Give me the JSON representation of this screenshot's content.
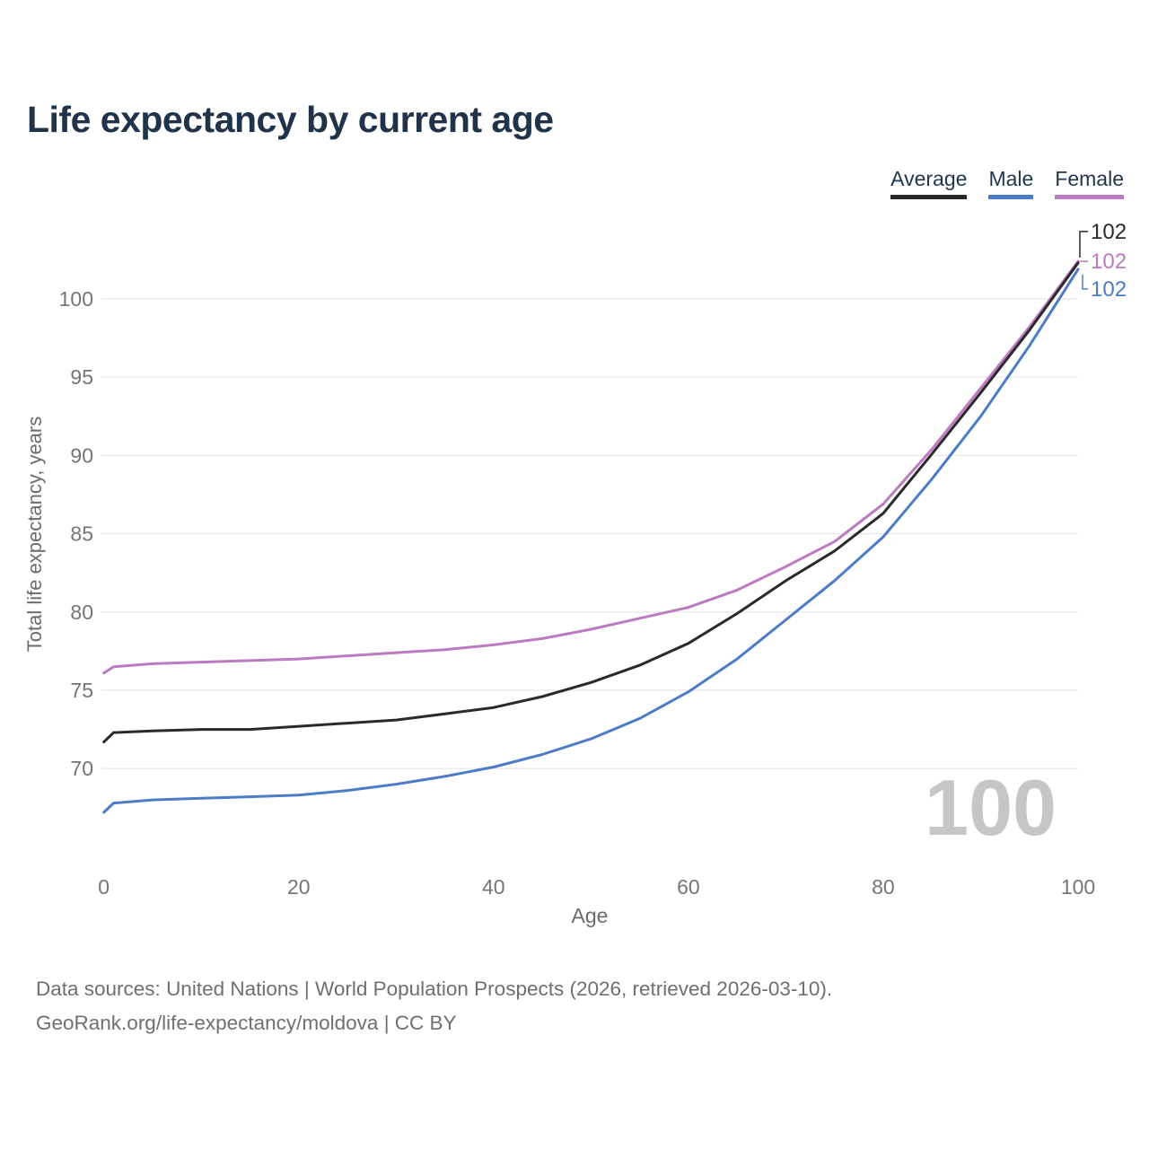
{
  "title": "Life expectancy by current age",
  "legend": {
    "items": [
      {
        "label": "Average",
        "color": "#2a2a2a"
      },
      {
        "label": "Male",
        "color": "#4d7cc6"
      },
      {
        "label": "Female",
        "color": "#bb7ac1"
      }
    ]
  },
  "colors": {
    "title_text": "#203349",
    "tick_text": "#757575",
    "axis_title_text": "#6b6b6b",
    "gridline": "#e8e8e8",
    "watermark": "#c6c6c6",
    "footer_text": "#6f6f6f"
  },
  "chart_data": {
    "type": "line",
    "title": "Life expectancy by current age",
    "xlabel": "Age",
    "ylabel": "Total life expectancy, years",
    "x_ticks": [
      0,
      20,
      40,
      60,
      80,
      100
    ],
    "y_ticks": [
      70,
      75,
      80,
      85,
      90,
      95,
      100
    ],
    "xlim": [
      0,
      100
    ],
    "ylim": [
      67,
      102.5
    ],
    "grid": "horizontal-only",
    "legend_position": "top-right",
    "watermark": "100",
    "ages": [
      0,
      1,
      5,
      10,
      15,
      20,
      25,
      30,
      35,
      40,
      45,
      50,
      55,
      60,
      65,
      70,
      75,
      80,
      85,
      90,
      95,
      100
    ],
    "series": [
      {
        "name": "Average",
        "color": "#2a2a2a",
        "end_label": "102",
        "values": [
          71.7,
          72.3,
          72.4,
          72.5,
          72.5,
          72.7,
          72.9,
          73.1,
          73.5,
          73.9,
          74.6,
          75.5,
          76.6,
          78.0,
          79.9,
          82.0,
          83.9,
          86.3,
          90.1,
          94.0,
          98.0,
          102.3
        ]
      },
      {
        "name": "Male",
        "color": "#4d7cc6",
        "end_label": "102",
        "values": [
          67.2,
          67.8,
          68.0,
          68.1,
          68.2,
          68.3,
          68.6,
          69.0,
          69.5,
          70.1,
          70.9,
          71.9,
          73.2,
          74.9,
          77.0,
          79.5,
          82.0,
          84.8,
          88.5,
          92.5,
          97.0,
          101.9
        ]
      },
      {
        "name": "Female",
        "color": "#bb7ac1",
        "end_label": "102",
        "values": [
          76.1,
          76.5,
          76.7,
          76.8,
          76.9,
          77.0,
          77.2,
          77.4,
          77.6,
          77.9,
          78.3,
          78.9,
          79.6,
          80.3,
          81.4,
          82.9,
          84.5,
          86.9,
          90.4,
          94.3,
          98.2,
          102.4
        ]
      }
    ]
  },
  "footer": {
    "line1": "Data sources: United Nations | World Population Prospects (2026, retrieved 2026-03-10).",
    "line2": "GeoRank.org/life-expectancy/moldova | CC BY"
  }
}
